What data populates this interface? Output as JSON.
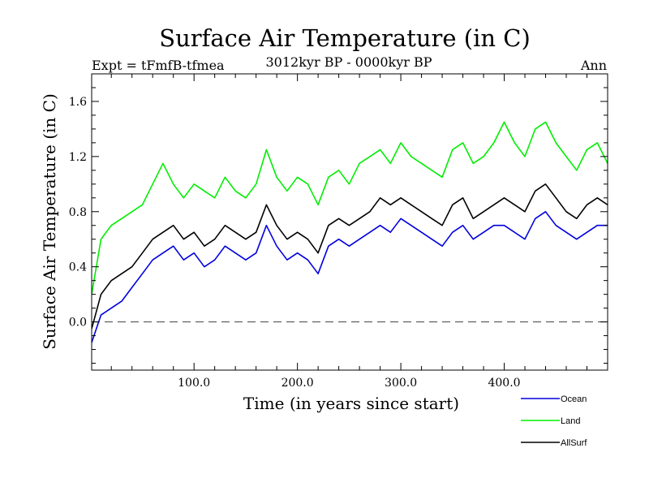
{
  "chart_data": {
    "type": "line",
    "title": "Surface Air Temperature (in C)",
    "subtitle": "3012kyr BP - 0000kyr BP",
    "left_label": "Expt = tFmfB-tfmea",
    "right_label": "Ann",
    "xlabel": "Time (in years since start)",
    "ylabel": "Surface Air Temperature (in C)",
    "xlim": [
      1,
      500
    ],
    "ylim": [
      -0.35,
      1.8
    ],
    "x_ticks": [
      100,
      200,
      300,
      400
    ],
    "x_tick_labels": [
      "100.0",
      "200.0",
      "300.0",
      "400.0"
    ],
    "y_ticks": [
      0.0,
      0.4,
      0.8,
      1.2,
      1.6
    ],
    "y_tick_labels": [
      "0.0",
      "0.4",
      "0.8",
      "1.2",
      "1.6"
    ],
    "zero_line": true,
    "legend_position": "lower-right-outside",
    "series": [
      {
        "name": "Ocean",
        "color": "#0000dd",
        "x": [
          1,
          10,
          20,
          30,
          40,
          50,
          60,
          70,
          80,
          90,
          100,
          110,
          120,
          130,
          140,
          150,
          160,
          170,
          180,
          190,
          200,
          210,
          220,
          230,
          240,
          250,
          260,
          270,
          280,
          290,
          300,
          310,
          320,
          330,
          340,
          350,
          360,
          370,
          380,
          390,
          400,
          410,
          420,
          430,
          440,
          450,
          460,
          470,
          480,
          490,
          500
        ],
        "values": [
          -0.15,
          0.05,
          0.1,
          0.15,
          0.25,
          0.35,
          0.45,
          0.5,
          0.55,
          0.45,
          0.5,
          0.4,
          0.45,
          0.55,
          0.5,
          0.45,
          0.5,
          0.7,
          0.55,
          0.45,
          0.5,
          0.45,
          0.35,
          0.55,
          0.6,
          0.55,
          0.6,
          0.65,
          0.7,
          0.65,
          0.75,
          0.7,
          0.65,
          0.6,
          0.55,
          0.65,
          0.7,
          0.6,
          0.65,
          0.7,
          0.7,
          0.65,
          0.6,
          0.75,
          0.8,
          0.7,
          0.65,
          0.6,
          0.65,
          0.7,
          0.7
        ]
      },
      {
        "name": "Land",
        "color": "#00ee00",
        "x": [
          1,
          10,
          20,
          30,
          40,
          50,
          60,
          70,
          80,
          90,
          100,
          110,
          120,
          130,
          140,
          150,
          160,
          170,
          180,
          190,
          200,
          210,
          220,
          230,
          240,
          250,
          260,
          270,
          280,
          290,
          300,
          310,
          320,
          330,
          340,
          350,
          360,
          370,
          380,
          390,
          400,
          410,
          420,
          430,
          440,
          450,
          460,
          470,
          480,
          490,
          500
        ],
        "values": [
          0.2,
          0.6,
          0.7,
          0.75,
          0.8,
          0.85,
          1.0,
          1.15,
          1.0,
          0.9,
          1.0,
          0.95,
          0.9,
          1.05,
          0.95,
          0.9,
          1.0,
          1.25,
          1.05,
          0.95,
          1.05,
          1.0,
          0.85,
          1.05,
          1.1,
          1.0,
          1.15,
          1.2,
          1.25,
          1.15,
          1.3,
          1.2,
          1.15,
          1.1,
          1.05,
          1.25,
          1.3,
          1.15,
          1.2,
          1.3,
          1.45,
          1.3,
          1.2,
          1.4,
          1.45,
          1.3,
          1.2,
          1.1,
          1.25,
          1.3,
          1.15
        ]
      },
      {
        "name": "AllSurf",
        "color": "#000000",
        "x": [
          1,
          10,
          20,
          30,
          40,
          50,
          60,
          70,
          80,
          90,
          100,
          110,
          120,
          130,
          140,
          150,
          160,
          170,
          180,
          190,
          200,
          210,
          220,
          230,
          240,
          250,
          260,
          270,
          280,
          290,
          300,
          310,
          320,
          330,
          340,
          350,
          360,
          370,
          380,
          390,
          400,
          410,
          420,
          430,
          440,
          450,
          460,
          470,
          480,
          490,
          500
        ],
        "values": [
          -0.05,
          0.2,
          0.3,
          0.35,
          0.4,
          0.5,
          0.6,
          0.65,
          0.7,
          0.6,
          0.65,
          0.55,
          0.6,
          0.7,
          0.65,
          0.6,
          0.65,
          0.85,
          0.7,
          0.6,
          0.65,
          0.6,
          0.5,
          0.7,
          0.75,
          0.7,
          0.75,
          0.8,
          0.9,
          0.85,
          0.9,
          0.85,
          0.8,
          0.75,
          0.7,
          0.85,
          0.9,
          0.75,
          0.8,
          0.85,
          0.9,
          0.85,
          0.8,
          0.95,
          1.0,
          0.9,
          0.8,
          0.75,
          0.85,
          0.9,
          0.85
        ]
      }
    ]
  }
}
